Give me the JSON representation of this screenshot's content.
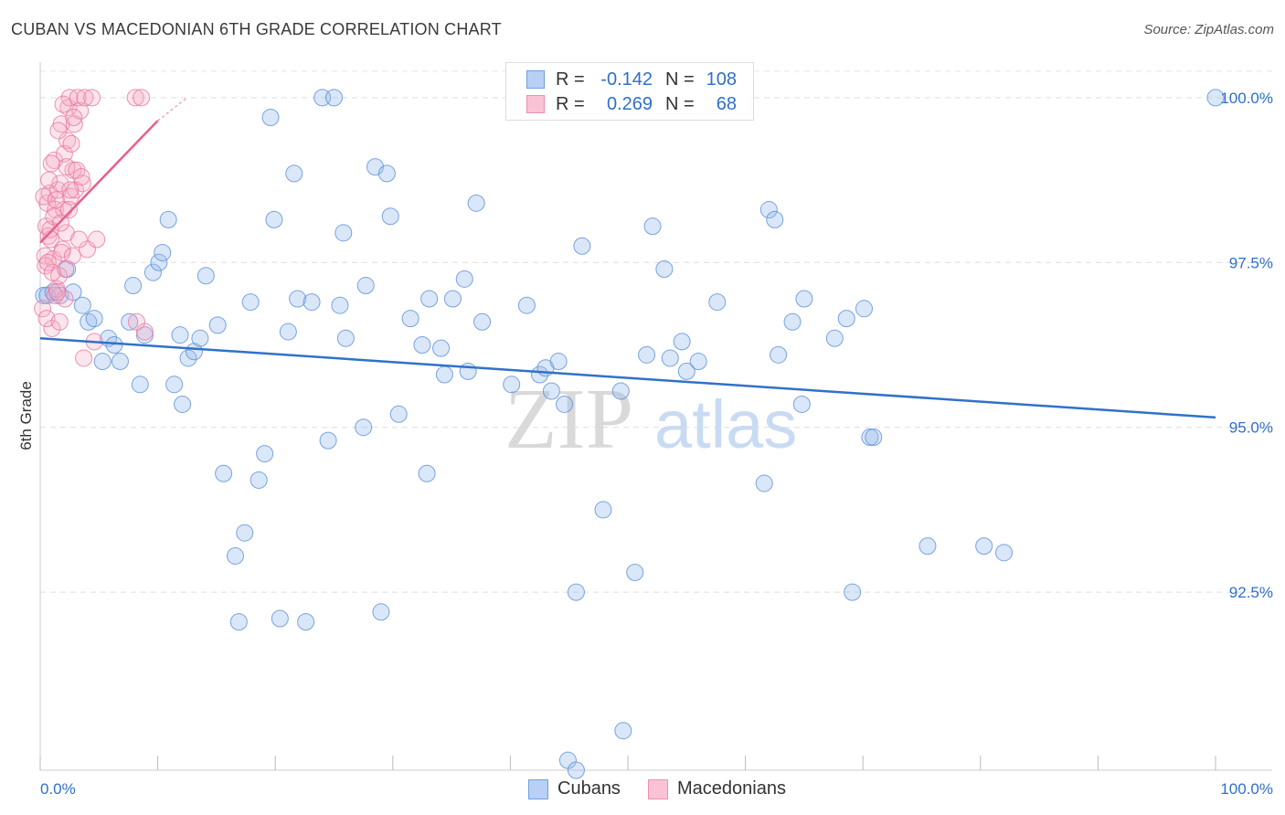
{
  "title": "CUBAN VS MACEDONIAN 6TH GRADE CORRELATION CHART",
  "source": "Source: ZipAtlas.com",
  "watermark": {
    "zip": "ZIP",
    "atlas": "atlas"
  },
  "legend": {
    "rows": [
      {
        "r_label": "R =",
        "r_value": "-0.142",
        "n_label": "N =",
        "n_value": "108",
        "color": "#6fa0e0",
        "fill": "#b8d0f5"
      },
      {
        "r_label": "R =",
        "r_value": "0.269",
        "n_label": "N =",
        "n_value": "68",
        "color": "#ef8fb0",
        "fill": "#f9c3d5"
      }
    ]
  },
  "bottom_legend": [
    {
      "label": "Cubans",
      "color": "#6fa0e0",
      "fill": "#b8d0f5"
    },
    {
      "label": "Macedonians",
      "color": "#ef8fb0",
      "fill": "#f9c3d5"
    }
  ],
  "chart_data": {
    "type": "scatter",
    "title": "CUBAN VS MACEDONIAN 6TH GRADE CORRELATION CHART",
    "xlabel": "",
    "ylabel": "6th Grade",
    "xlim": [
      0,
      100
    ],
    "ylim": [
      89.8,
      100.4
    ],
    "x_tick_labels": [
      "0.0%",
      "100.0%"
    ],
    "y_ticks": [
      92.5,
      95.0,
      97.5,
      100.0
    ],
    "y_tick_labels": [
      "92.5%",
      "95.0%",
      "97.5%",
      "100.0%"
    ],
    "grid": true,
    "series": [
      {
        "name": "Cubans",
        "color": "#5b8fd6",
        "fill": "rgba(150,185,235,0.35)",
        "trend": {
          "x": [
            0,
            100
          ],
          "y": [
            96.35,
            95.15
          ],
          "color": "#2f72c9"
        },
        "points": [
          [
            0.3,
            97.0
          ],
          [
            0.6,
            97.0
          ],
          [
            1.1,
            97.05
          ],
          [
            1.7,
            97.0
          ],
          [
            2.3,
            97.4
          ],
          [
            2.8,
            97.05
          ],
          [
            3.6,
            96.85
          ],
          [
            4.1,
            96.6
          ],
          [
            4.6,
            96.65
          ],
          [
            5.3,
            96.0
          ],
          [
            5.8,
            96.35
          ],
          [
            6.3,
            96.25
          ],
          [
            6.8,
            96.0
          ],
          [
            7.6,
            96.6
          ],
          [
            7.9,
            97.15
          ],
          [
            8.5,
            95.65
          ],
          [
            8.9,
            96.4
          ],
          [
            9.6,
            97.35
          ],
          [
            10.1,
            97.5
          ],
          [
            10.4,
            97.65
          ],
          [
            10.9,
            98.15
          ],
          [
            11.4,
            95.65
          ],
          [
            11.9,
            96.4
          ],
          [
            12.1,
            95.35
          ],
          [
            12.6,
            96.05
          ],
          [
            13.1,
            96.15
          ],
          [
            13.6,
            96.35
          ],
          [
            14.1,
            97.3
          ],
          [
            15.1,
            96.55
          ],
          [
            15.6,
            94.3
          ],
          [
            16.6,
            93.05
          ],
          [
            16.9,
            92.05
          ],
          [
            17.4,
            93.4
          ],
          [
            17.9,
            96.9
          ],
          [
            18.6,
            94.2
          ],
          [
            19.1,
            94.6
          ],
          [
            19.6,
            99.7
          ],
          [
            19.9,
            98.15
          ],
          [
            20.4,
            92.1
          ],
          [
            21.1,
            96.45
          ],
          [
            21.6,
            98.85
          ],
          [
            21.9,
            96.95
          ],
          [
            22.6,
            92.05
          ],
          [
            23.1,
            96.9
          ],
          [
            24.0,
            100.0
          ],
          [
            24.5,
            94.8
          ],
          [
            25.0,
            100.0
          ],
          [
            25.5,
            96.85
          ],
          [
            25.8,
            97.95
          ],
          [
            26.0,
            96.35
          ],
          [
            27.5,
            95.0
          ],
          [
            27.7,
            97.15
          ],
          [
            28.5,
            98.95
          ],
          [
            29.0,
            92.2
          ],
          [
            29.5,
            98.85
          ],
          [
            29.8,
            98.2
          ],
          [
            30.5,
            95.2
          ],
          [
            31.5,
            96.65
          ],
          [
            32.5,
            96.25
          ],
          [
            32.9,
            94.3
          ],
          [
            33.1,
            96.95
          ],
          [
            34.1,
            96.2
          ],
          [
            34.4,
            95.8
          ],
          [
            35.1,
            96.95
          ],
          [
            36.1,
            97.25
          ],
          [
            36.4,
            95.85
          ],
          [
            37.1,
            98.4
          ],
          [
            37.6,
            96.6
          ],
          [
            40.1,
            95.65
          ],
          [
            41.4,
            96.85
          ],
          [
            42.5,
            95.8
          ],
          [
            43.0,
            95.9
          ],
          [
            43.5,
            95.55
          ],
          [
            44.1,
            96.0
          ],
          [
            44.6,
            95.35
          ],
          [
            44.9,
            89.95
          ],
          [
            45.6,
            92.5
          ],
          [
            46.1,
            97.75
          ],
          [
            47.9,
            93.75
          ],
          [
            49.4,
            95.55
          ],
          [
            50.6,
            92.8
          ],
          [
            51.6,
            96.1
          ],
          [
            52.1,
            98.05
          ],
          [
            53.1,
            97.4
          ],
          [
            53.6,
            96.05
          ],
          [
            54.6,
            96.3
          ],
          [
            55.0,
            95.85
          ],
          [
            56.0,
            96.0
          ],
          [
            57.6,
            96.9
          ],
          [
            61.6,
            94.15
          ],
          [
            62.0,
            98.3
          ],
          [
            62.5,
            98.15
          ],
          [
            62.8,
            96.1
          ],
          [
            64.0,
            96.6
          ],
          [
            64.8,
            95.35
          ],
          [
            65.0,
            96.95
          ],
          [
            67.6,
            96.35
          ],
          [
            68.6,
            96.65
          ],
          [
            69.1,
            92.5
          ],
          [
            70.1,
            96.8
          ],
          [
            70.6,
            94.85
          ],
          [
            70.9,
            94.85
          ],
          [
            75.5,
            93.2
          ],
          [
            80.3,
            93.2
          ],
          [
            82.0,
            93.1
          ],
          [
            100.0,
            100.0
          ],
          [
            45.6,
            89.8
          ],
          [
            49.6,
            90.4
          ]
        ]
      },
      {
        "name": "Macedonians",
        "color": "#e8789f",
        "fill": "rgba(245,170,195,0.30)",
        "trend": {
          "x": [
            0,
            10
          ],
          "y": [
            97.8,
            99.65
          ],
          "dash_to": [
            12.5,
            100.0
          ],
          "color": "#e4608f"
        },
        "points": [
          [
            0.2,
            96.8
          ],
          [
            0.4,
            97.6
          ],
          [
            0.5,
            98.05
          ],
          [
            0.6,
            98.4
          ],
          [
            0.7,
            97.9
          ],
          [
            0.8,
            98.55
          ],
          [
            0.9,
            97.85
          ],
          [
            1.0,
            96.5
          ],
          [
            1.1,
            97.55
          ],
          [
            1.2,
            99.05
          ],
          [
            1.3,
            98.3
          ],
          [
            1.4,
            97.1
          ],
          [
            1.5,
            98.6
          ],
          [
            1.6,
            97.3
          ],
          [
            1.7,
            98.7
          ],
          [
            1.8,
            99.6
          ],
          [
            1.9,
            97.7
          ],
          [
            2.0,
            98.3
          ],
          [
            2.1,
            96.95
          ],
          [
            2.2,
            97.95
          ],
          [
            2.3,
            99.35
          ],
          [
            2.4,
            99.85
          ],
          [
            2.5,
            100.0
          ],
          [
            2.6,
            98.5
          ],
          [
            2.8,
            98.9
          ],
          [
            2.9,
            99.6
          ],
          [
            3.0,
            98.6
          ],
          [
            3.2,
            100.0
          ],
          [
            3.4,
            99.8
          ],
          [
            3.6,
            98.7
          ],
          [
            3.8,
            100.0
          ],
          [
            4.0,
            97.7
          ],
          [
            4.4,
            100.0
          ],
          [
            4.8,
            97.85
          ],
          [
            0.3,
            98.5
          ],
          [
            0.45,
            97.45
          ],
          [
            0.55,
            96.65
          ],
          [
            0.65,
            97.5
          ],
          [
            0.75,
            98.75
          ],
          [
            0.85,
            98.0
          ],
          [
            0.95,
            99.0
          ],
          [
            1.05,
            97.35
          ],
          [
            1.15,
            98.2
          ],
          [
            1.25,
            97.0
          ],
          [
            1.35,
            98.45
          ],
          [
            1.55,
            99.5
          ],
          [
            1.65,
            96.6
          ],
          [
            1.75,
            98.1
          ],
          [
            1.85,
            97.65
          ],
          [
            1.95,
            99.9
          ],
          [
            2.05,
            99.15
          ],
          [
            2.15,
            97.4
          ],
          [
            2.25,
            98.95
          ],
          [
            2.45,
            98.3
          ],
          [
            2.55,
            98.6
          ],
          [
            2.65,
            99.3
          ],
          [
            2.75,
            97.6
          ],
          [
            2.85,
            99.7
          ],
          [
            3.1,
            98.9
          ],
          [
            3.3,
            97.85
          ],
          [
            3.5,
            98.8
          ],
          [
            3.7,
            96.05
          ],
          [
            4.6,
            96.3
          ],
          [
            8.1,
            100.0
          ],
          [
            8.6,
            100.0
          ],
          [
            8.2,
            96.6
          ],
          [
            8.9,
            96.45
          ],
          [
            1.45,
            97.05
          ]
        ]
      }
    ]
  }
}
